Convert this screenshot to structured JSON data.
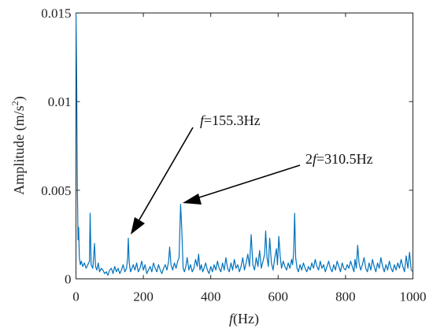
{
  "chart_data": {
    "type": "line",
    "xlabel_parts": {
      "italic": "f",
      "rest": "(Hz)"
    },
    "ylabel_parts": {
      "base": "Amplitude (m/s",
      "sup": "2",
      "end": ")"
    },
    "xlim": [
      0,
      1000
    ],
    "ylim": [
      0,
      0.015
    ],
    "x_ticks": [
      0,
      200,
      400,
      600,
      800,
      1000
    ],
    "x_tick_labels": [
      "0",
      "200",
      "400",
      "600",
      "800",
      "1000"
    ],
    "y_ticks": [
      0,
      0.005,
      0.01,
      0.015
    ],
    "y_tick_labels": [
      "0",
      "0.005",
      "0.01",
      "0.015"
    ],
    "grid": false,
    "series_color": "#0072BD",
    "series": [
      {
        "x": [
          0,
          2,
          4,
          6,
          8,
          10,
          13,
          16,
          20,
          25,
          30,
          35,
          40,
          42,
          45,
          50,
          55,
          58,
          62,
          66,
          70,
          75,
          80,
          85,
          90,
          95,
          100,
          105,
          110,
          115,
          120,
          125,
          130,
          135,
          140,
          145,
          150,
          153,
          155.3,
          158,
          162,
          166,
          170,
          175,
          180,
          185,
          190,
          195,
          200,
          205,
          210,
          215,
          220,
          225,
          230,
          235,
          240,
          245,
          250,
          255,
          260,
          265,
          270,
          275,
          278,
          282,
          287,
          292,
          297,
          302,
          306,
          310.5,
          314,
          318,
          322,
          326,
          330,
          335,
          340,
          345,
          350,
          355,
          360,
          364,
          368,
          372,
          376,
          380,
          385,
          390,
          395,
          400,
          405,
          410,
          415,
          420,
          425,
          430,
          435,
          440,
          445,
          450,
          455,
          460,
          465,
          470,
          475,
          480,
          485,
          490,
          495,
          500,
          505,
          510,
          515,
          520,
          525,
          530,
          535,
          540,
          545,
          550,
          555,
          560,
          563,
          567,
          571,
          575,
          580,
          585,
          590,
          595,
          598,
          602,
          606,
          610,
          615,
          620,
          625,
          630,
          635,
          640,
          643,
          646,
          649,
          652,
          656,
          660,
          665,
          670,
          675,
          680,
          685,
          690,
          695,
          700,
          705,
          710,
          715,
          720,
          725,
          730,
          735,
          740,
          745,
          750,
          755,
          760,
          765,
          770,
          775,
          780,
          785,
          790,
          795,
          800,
          805,
          810,
          815,
          820,
          825,
          828,
          832,
          836,
          840,
          845,
          850,
          855,
          860,
          865,
          870,
          875,
          880,
          885,
          890,
          895,
          900,
          905,
          910,
          915,
          920,
          925,
          930,
          935,
          940,
          945,
          950,
          955,
          960,
          965,
          970,
          975,
          980,
          985,
          990,
          995,
          1000
        ],
        "y": [
          0.015,
          0.0115,
          0.0055,
          0.0022,
          0.0029,
          0.0012,
          0.0008,
          0.001,
          0.0007,
          0.0009,
          0.0006,
          0.0008,
          0.001,
          0.0037,
          0.0008,
          0.0006,
          0.002,
          0.0007,
          0.0005,
          0.0009,
          0.0004,
          0.0006,
          0.0005,
          0.0003,
          0.0004,
          0.0002,
          0.0005,
          0.0006,
          0.0003,
          0.0007,
          0.0004,
          0.0006,
          0.0003,
          0.0005,
          0.0008,
          0.0004,
          0.0006,
          0.0011,
          0.0023,
          0.0009,
          0.0004,
          0.0006,
          0.0008,
          0.0005,
          0.0009,
          0.0004,
          0.0006,
          0.001,
          0.0005,
          0.0008,
          0.0003,
          0.0005,
          0.0007,
          0.0004,
          0.0009,
          0.0006,
          0.0004,
          0.0008,
          0.0005,
          0.0003,
          0.0006,
          0.0008,
          0.0005,
          0.001,
          0.0018,
          0.0008,
          0.0005,
          0.0009,
          0.0006,
          0.001,
          0.0012,
          0.0042,
          0.0028,
          0.0006,
          0.0004,
          0.0007,
          0.0012,
          0.0005,
          0.0008,
          0.0004,
          0.0006,
          0.0011,
          0.0007,
          0.0014,
          0.0005,
          0.0008,
          0.0004,
          0.0006,
          0.0009,
          0.0005,
          0.0003,
          0.0007,
          0.0004,
          0.0008,
          0.0005,
          0.001,
          0.0006,
          0.0004,
          0.0009,
          0.0005,
          0.0012,
          0.0006,
          0.0004,
          0.0009,
          0.0005,
          0.0011,
          0.0006,
          0.0008,
          0.0004,
          0.0007,
          0.0012,
          0.0005,
          0.0009,
          0.0014,
          0.0007,
          0.0025,
          0.0008,
          0.0005,
          0.0012,
          0.0007,
          0.0016,
          0.0006,
          0.001,
          0.0014,
          0.0027,
          0.0012,
          0.0007,
          0.0023,
          0.0009,
          0.0005,
          0.0012,
          0.0017,
          0.0008,
          0.0024,
          0.0013,
          0.0006,
          0.001,
          0.0007,
          0.0005,
          0.0009,
          0.0006,
          0.0011,
          0.0008,
          0.0015,
          0.0037,
          0.0012,
          0.0006,
          0.0004,
          0.0008,
          0.0005,
          0.0009,
          0.0006,
          0.0004,
          0.0007,
          0.0005,
          0.0009,
          0.0006,
          0.0011,
          0.0007,
          0.0005,
          0.001,
          0.0006,
          0.0008,
          0.0004,
          0.0007,
          0.001,
          0.0006,
          0.0004,
          0.0008,
          0.0005,
          0.001,
          0.0007,
          0.0004,
          0.0009,
          0.0006,
          0.0005,
          0.0008,
          0.0006,
          0.001,
          0.0007,
          0.0004,
          0.0011,
          0.0006,
          0.0019,
          0.0009,
          0.0005,
          0.0008,
          0.0012,
          0.0006,
          0.0004,
          0.0009,
          0.0005,
          0.0011,
          0.0007,
          0.0004,
          0.0009,
          0.0006,
          0.0012,
          0.0007,
          0.0004,
          0.0008,
          0.0005,
          0.001,
          0.0006,
          0.0004,
          0.0008,
          0.0005,
          0.0009,
          0.0006,
          0.0011,
          0.0007,
          0.0004,
          0.0013,
          0.0006,
          0.0015,
          0.0005,
          0.0004
        ]
      }
    ],
    "annotations": [
      {
        "italic_part": "f",
        "text": "=155.3Hz",
        "point_x": 155.3,
        "point_y": 0.0023
      },
      {
        "prefix": "2",
        "italic_part": "f",
        "text": "=310.5Hz",
        "point_x": 310.5,
        "point_y": 0.0042
      }
    ]
  }
}
